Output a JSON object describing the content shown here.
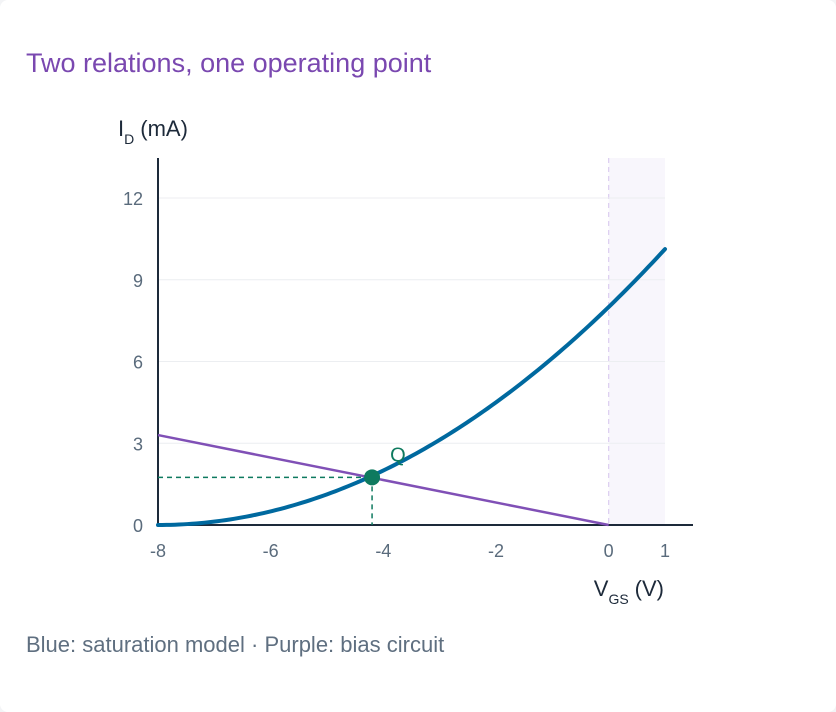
{
  "title": "Two relations, one operating point",
  "caption": "Blue: saturation model · Purple: bias circuit",
  "chart_data": {
    "type": "line",
    "y_axis": {
      "label_main": "I",
      "label_sub": "D",
      "label_unit": "(mA)",
      "ticks": [
        0,
        3,
        6,
        9,
        12
      ],
      "range": [
        0,
        13.5
      ]
    },
    "x_axis": {
      "label_main": "V",
      "label_sub": "GS",
      "label_unit": "(V)",
      "ticks": [
        -8,
        -6,
        -4,
        -2,
        0,
        1
      ],
      "range": [
        -8,
        1.5
      ]
    },
    "grid": true,
    "shaded_region": {
      "x_start": 0,
      "x_end": 1,
      "color": "#f8f6fc"
    },
    "series": [
      {
        "role": "saturation model",
        "color": "#00699f",
        "curve": {
          "IDSS_mA": 8,
          "Vp_V": -8,
          "x_start": -8,
          "x_end": 1
        }
      },
      {
        "role": "bias circuit",
        "color": "#8050b6",
        "points": [
          [
            -8,
            3.3
          ],
          [
            0,
            0
          ]
        ]
      }
    ],
    "operating_point": {
      "label": "Q",
      "x": -4.2,
      "y": 1.75,
      "color": "#0e7a5f"
    }
  }
}
